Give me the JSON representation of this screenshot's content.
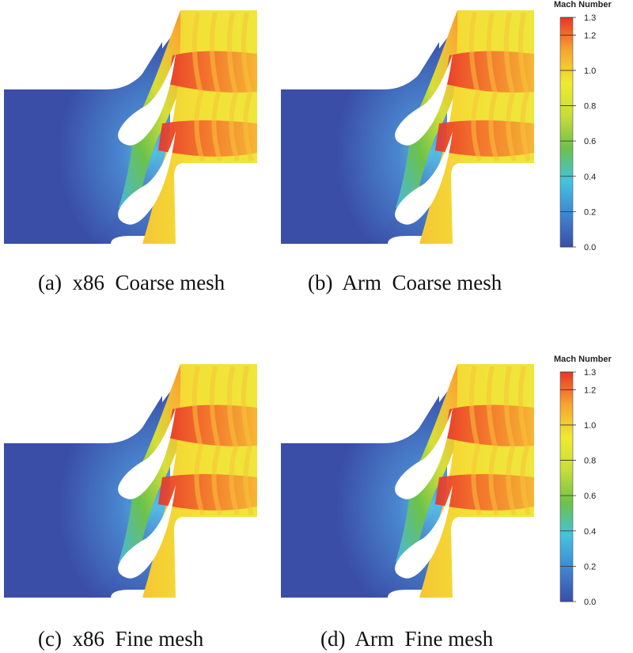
{
  "panels": [
    {
      "id": "a",
      "caption": "(a)  x86  Coarse mesh"
    },
    {
      "id": "b",
      "caption": "(b)  Arm  Coarse mesh"
    },
    {
      "id": "c",
      "caption": "(c)  x86  Fine mesh"
    },
    {
      "id": "d",
      "caption": "(d)  Arm  Fine mesh"
    }
  ],
  "colorbar": {
    "title": "Mach Number",
    "ticks": [
      "1.3",
      "1.2",
      "1.0",
      "0.8",
      "0.6",
      "0.4",
      "0.2",
      "0.0"
    ],
    "tick_values": [
      1.3,
      1.2,
      1.0,
      0.8,
      0.6,
      0.4,
      0.2,
      0.0
    ],
    "range": [
      0.0,
      1.3
    ],
    "colormap": [
      "#3a4ea8",
      "#3f86d0",
      "#43c3e0",
      "#6cc24a",
      "#c7dc3a",
      "#f0ea30",
      "#f7a531",
      "#e83528"
    ]
  }
}
